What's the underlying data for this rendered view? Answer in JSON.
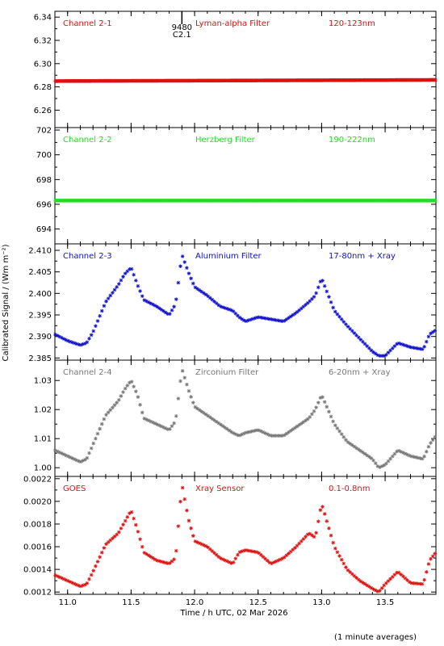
{
  "x_axis": {
    "label": "Time / h UTC, 02 Mar 2026",
    "range": [
      10.9,
      13.9
    ],
    "ticks": [
      11.0,
      11.5,
      12.0,
      12.5,
      13.0,
      13.5
    ],
    "tick_labels": [
      "11.0",
      "11.5",
      "12.0",
      "12.5",
      "13.0",
      "13.5"
    ]
  },
  "y_axis_label": "Calibrated Signal / (Wm m⁻²)",
  "footnote": "(1 minute averages)",
  "marker": {
    "x": 11.9,
    "labels": [
      "9480",
      "C2.1"
    ]
  },
  "chart_data": [
    {
      "type": "scatter",
      "channel": "Channel 2-1",
      "filter": "Lyman-alpha Filter",
      "band": "120-123nm",
      "color": "#dd1111",
      "marker": "asterisk",
      "ylim": [
        6.245,
        6.345
      ],
      "yticks": [
        6.26,
        6.28,
        6.3,
        6.32,
        6.34
      ],
      "ytick_labels": [
        "6.26",
        "6.28",
        "6.30",
        "6.32",
        "6.34"
      ],
      "x": [
        10.9,
        13.9
      ],
      "y": [
        6.285,
        6.286
      ],
      "series_style": "flat"
    },
    {
      "type": "scatter",
      "channel": "Channel 2-2",
      "filter": "Herzberg Filter",
      "band": "190-222nm",
      "color": "#22dd22",
      "marker": "asterisk",
      "ylim": [
        692.8,
        702.2
      ],
      "yticks": [
        694,
        696,
        698,
        700,
        702
      ],
      "ytick_labels": [
        "694",
        "696",
        "698",
        "700",
        "702"
      ],
      "x": [
        10.9,
        13.9
      ],
      "y": [
        696.3,
        696.3
      ],
      "series_style": "flat"
    },
    {
      "type": "scatter",
      "channel": "Channel 2-3",
      "filter": "Aluminium Filter",
      "band": "17-80nm + Xray",
      "color": "#1111cc",
      "marker": "asterisk",
      "ylim": [
        2.3845,
        2.4115
      ],
      "yticks": [
        2.385,
        2.39,
        2.395,
        2.4,
        2.405,
        2.41
      ],
      "ytick_labels": [
        "2.385",
        "2.390",
        "2.395",
        "2.400",
        "2.405",
        "2.410"
      ],
      "x": [
        10.9,
        11.0,
        11.1,
        11.15,
        11.2,
        11.3,
        11.4,
        11.45,
        11.5,
        11.55,
        11.6,
        11.7,
        11.8,
        11.85,
        11.9,
        11.95,
        12.0,
        12.1,
        12.2,
        12.3,
        12.35,
        12.4,
        12.5,
        12.6,
        12.7,
        12.8,
        12.9,
        12.95,
        13.0,
        13.1,
        13.2,
        13.3,
        13.4,
        13.45,
        13.5,
        13.6,
        13.7,
        13.8,
        13.85,
        13.9
      ],
      "y": [
        2.3905,
        2.389,
        2.388,
        2.3885,
        2.391,
        2.398,
        2.402,
        2.4045,
        2.406,
        2.402,
        2.3985,
        2.397,
        2.395,
        2.3975,
        2.409,
        2.405,
        2.4015,
        2.3995,
        2.397,
        2.396,
        2.3945,
        2.3935,
        2.3945,
        2.394,
        2.3935,
        2.3955,
        2.398,
        2.3995,
        2.4035,
        2.396,
        2.3925,
        2.3895,
        2.3865,
        2.3855,
        2.3855,
        2.3885,
        2.3875,
        2.387,
        2.3905,
        2.3915
      ]
    },
    {
      "type": "scatter",
      "channel": "Channel 2-4",
      "filter": "Zirconium Filter",
      "band": "6-20nm + Xray",
      "color": "#777777",
      "marker": "asterisk",
      "ylim": [
        0.997,
        1.037
      ],
      "yticks": [
        1.0,
        1.01,
        1.02,
        1.03
      ],
      "ytick_labels": [
        "1.00",
        "1.01",
        "1.02",
        "1.03"
      ],
      "x": [
        10.9,
        11.0,
        11.1,
        11.15,
        11.2,
        11.3,
        11.4,
        11.45,
        11.5,
        11.55,
        11.6,
        11.7,
        11.8,
        11.85,
        11.9,
        11.95,
        12.0,
        12.1,
        12.2,
        12.3,
        12.35,
        12.4,
        12.5,
        12.6,
        12.7,
        12.8,
        12.9,
        12.95,
        13.0,
        13.1,
        13.2,
        13.3,
        13.4,
        13.45,
        13.5,
        13.6,
        13.7,
        13.8,
        13.85,
        13.9
      ],
      "y": [
        1.006,
        1.004,
        1.002,
        1.003,
        1.008,
        1.018,
        1.023,
        1.027,
        1.03,
        1.025,
        1.017,
        1.015,
        1.013,
        1.016,
        1.034,
        1.027,
        1.021,
        1.018,
        1.015,
        1.012,
        1.011,
        1.012,
        1.013,
        1.011,
        1.011,
        1.014,
        1.017,
        1.02,
        1.025,
        1.015,
        1.009,
        1.006,
        1.003,
        1.0,
        1.001,
        1.006,
        1.004,
        1.003,
        1.008,
        1.011
      ]
    },
    {
      "type": "scatter",
      "channel": "GOES",
      "filter": "Xray Sensor",
      "band": "0.1-0.8nm",
      "color": "#dd1111",
      "marker": "asterisk",
      "ylim": [
        0.00118,
        0.00222
      ],
      "yticks": [
        0.0012,
        0.0014,
        0.0016,
        0.0018,
        0.002,
        0.0022
      ],
      "ytick_labels": [
        "0.0012",
        "0.0014",
        "0.0016",
        "0.0018",
        "0.0020",
        "0.0022"
      ],
      "x": [
        10.9,
        11.0,
        11.1,
        11.15,
        11.2,
        11.3,
        11.4,
        11.45,
        11.5,
        11.55,
        11.6,
        11.7,
        11.8,
        11.85,
        11.9,
        11.95,
        12.0,
        12.1,
        12.2,
        12.3,
        12.35,
        12.4,
        12.5,
        12.6,
        12.7,
        12.8,
        12.9,
        12.95,
        13.0,
        13.1,
        13.2,
        13.3,
        13.4,
        13.45,
        13.5,
        13.6,
        13.7,
        13.8,
        13.85,
        13.9
      ],
      "y": [
        0.00135,
        0.0013,
        0.00125,
        0.00127,
        0.00138,
        0.00162,
        0.00172,
        0.00182,
        0.00192,
        0.00175,
        0.00155,
        0.00148,
        0.00145,
        0.0015,
        0.00215,
        0.00185,
        0.00165,
        0.0016,
        0.0015,
        0.00145,
        0.00155,
        0.00157,
        0.00155,
        0.00145,
        0.0015,
        0.0016,
        0.00172,
        0.00168,
        0.00198,
        0.0016,
        0.0014,
        0.0013,
        0.00123,
        0.0012,
        0.00127,
        0.00138,
        0.00128,
        0.00127,
        0.00148,
        0.00155
      ]
    }
  ]
}
